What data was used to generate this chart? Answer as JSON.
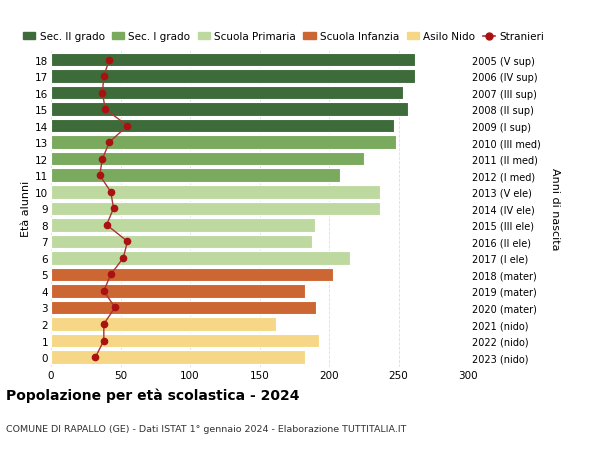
{
  "ages": [
    18,
    17,
    16,
    15,
    14,
    13,
    12,
    11,
    10,
    9,
    8,
    7,
    6,
    5,
    4,
    3,
    2,
    1,
    0
  ],
  "values": [
    262,
    262,
    253,
    257,
    247,
    248,
    225,
    208,
    237,
    237,
    190,
    188,
    215,
    203,
    183,
    191,
    162,
    193,
    183
  ],
  "stranieri": [
    42,
    38,
    37,
    39,
    55,
    42,
    37,
    35,
    43,
    45,
    40,
    55,
    52,
    43,
    38,
    46,
    38,
    38,
    32
  ],
  "right_labels": [
    "2005 (V sup)",
    "2006 (IV sup)",
    "2007 (III sup)",
    "2008 (II sup)",
    "2009 (I sup)",
    "2010 (III med)",
    "2011 (II med)",
    "2012 (I med)",
    "2013 (V ele)",
    "2014 (IV ele)",
    "2015 (III ele)",
    "2016 (II ele)",
    "2017 (I ele)",
    "2018 (mater)",
    "2019 (mater)",
    "2020 (mater)",
    "2021 (nido)",
    "2022 (nido)",
    "2023 (nido)"
  ],
  "bar_colors": {
    "sec2": "#3d6b3a",
    "sec1": "#7aaa5e",
    "primaria": "#bdd9a0",
    "infanzia": "#cc6633",
    "nido": "#f5d787"
  },
  "age_categories": {
    "sec2": [
      14,
      15,
      16,
      17,
      18
    ],
    "sec1": [
      11,
      12,
      13
    ],
    "primaria": [
      6,
      7,
      8,
      9,
      10
    ],
    "infanzia": [
      3,
      4,
      5
    ],
    "nido": [
      0,
      1,
      2
    ]
  },
  "stranieri_color": "#aa1111",
  "stranieri_line_color": "#aa3333",
  "title": "Popolazione per età scolastica - 2024",
  "subtitle": "COMUNE DI RAPALLO (GE) - Dati ISTAT 1° gennaio 2024 - Elaborazione TUTTITALIA.IT",
  "ylabel_left": "Età alunni",
  "ylabel_right": "Anni di nascita",
  "xlim": [
    0,
    300
  ],
  "xticks": [
    0,
    50,
    100,
    150,
    200,
    250,
    300
  ],
  "legend_labels": [
    "Sec. II grado",
    "Sec. I grado",
    "Scuola Primaria",
    "Scuola Infanzia",
    "Asilo Nido",
    "Stranieri"
  ],
  "bg_color": "#ffffff",
  "grid_color": "#dddddd"
}
